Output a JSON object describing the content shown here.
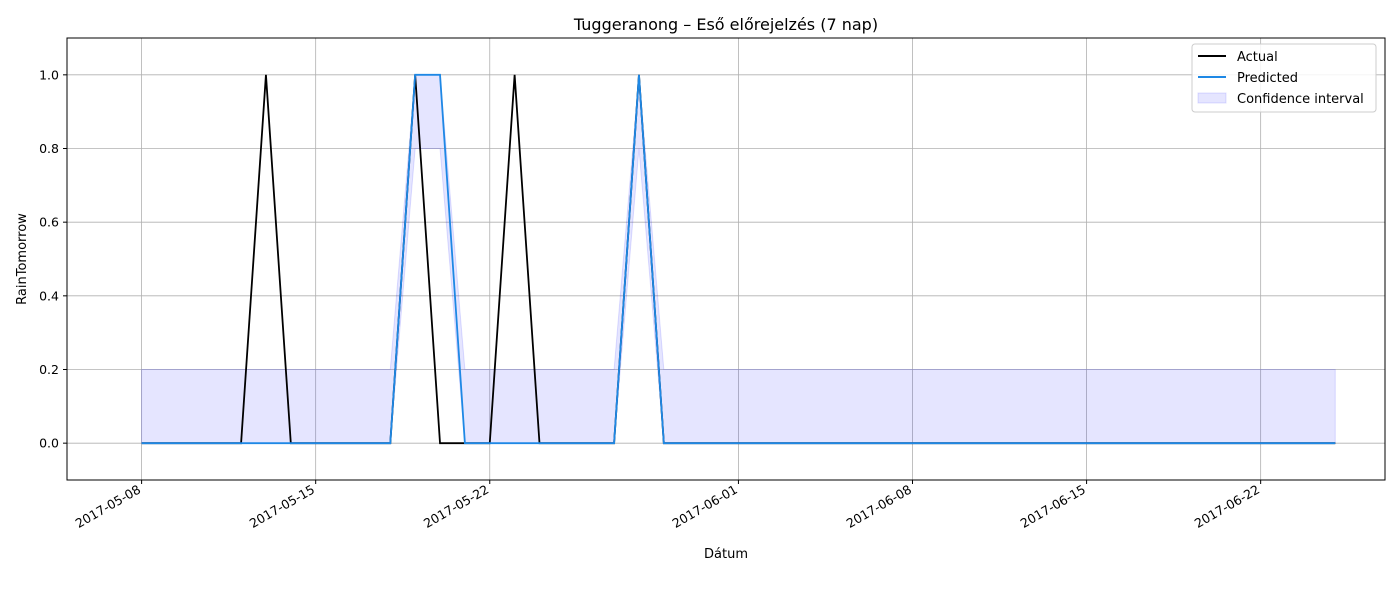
{
  "chart_data": {
    "type": "line",
    "title": "Tuggeranong – Eső előrejelzés (7 nap)",
    "xlabel": "Dátum",
    "ylabel": "RainTomorrow",
    "x_range": [
      "2017-05-05",
      "2017-06-27"
    ],
    "ylim": [
      -0.1,
      1.1
    ],
    "x_ticks": [
      "2017-05-08",
      "2017-05-15",
      "2017-05-22",
      "2017-06-01",
      "2017-06-08",
      "2017-06-15",
      "2017-06-22"
    ],
    "y_ticks": [
      "0.0",
      "0.2",
      "0.4",
      "0.6",
      "0.8",
      "1.0"
    ],
    "grid": true,
    "legend_position": "top-right",
    "dates": [
      "2017-05-08",
      "2017-05-09",
      "2017-05-10",
      "2017-05-11",
      "2017-05-12",
      "2017-05-13",
      "2017-05-14",
      "2017-05-15",
      "2017-05-16",
      "2017-05-17",
      "2017-05-18",
      "2017-05-19",
      "2017-05-20",
      "2017-05-21",
      "2017-05-22",
      "2017-05-23",
      "2017-05-24",
      "2017-05-25",
      "2017-05-26",
      "2017-05-27",
      "2017-05-28",
      "2017-05-29",
      "2017-05-30",
      "2017-05-31",
      "2017-06-01",
      "2017-06-02",
      "2017-06-03",
      "2017-06-04",
      "2017-06-05",
      "2017-06-06",
      "2017-06-07",
      "2017-06-08",
      "2017-06-09",
      "2017-06-10",
      "2017-06-11",
      "2017-06-12",
      "2017-06-13",
      "2017-06-14",
      "2017-06-15",
      "2017-06-16",
      "2017-06-17",
      "2017-06-18",
      "2017-06-19",
      "2017-06-20",
      "2017-06-21",
      "2017-06-22",
      "2017-06-23",
      "2017-06-24",
      "2017-06-25"
    ],
    "series": [
      {
        "name": "Actual",
        "color": "#000000",
        "values": [
          0,
          0,
          0,
          0,
          0,
          1,
          0,
          0,
          0,
          0,
          0,
          1,
          0,
          0,
          0,
          1,
          0,
          0,
          0,
          0,
          1,
          0,
          0,
          0,
          0,
          0,
          0,
          0,
          0,
          0,
          0,
          0,
          0,
          0,
          0,
          0,
          0,
          0,
          0,
          0,
          0,
          0,
          0,
          0,
          0,
          0,
          0,
          0,
          0
        ]
      },
      {
        "name": "Predicted",
        "color": "#1e88e5",
        "values": [
          0,
          0,
          0,
          0,
          0,
          0,
          0,
          0,
          0,
          0,
          0,
          1,
          1,
          0,
          0,
          0,
          0,
          0,
          0,
          0,
          1,
          0,
          0,
          0,
          0,
          0,
          0,
          0,
          0,
          0,
          0,
          0,
          0,
          0,
          0,
          0,
          0,
          0,
          0,
          0,
          0,
          0,
          0,
          0,
          0,
          0,
          0,
          0,
          0
        ]
      }
    ],
    "confidence_interval": {
      "name": "Confidence interval",
      "color": "#0000ff",
      "lower": [
        0,
        0,
        0,
        0,
        0,
        0,
        0,
        0,
        0,
        0,
        0,
        0.8,
        0.8,
        0,
        0,
        0,
        0,
        0,
        0,
        0,
        0.8,
        0,
        0,
        0,
        0,
        0,
        0,
        0,
        0,
        0,
        0,
        0,
        0,
        0,
        0,
        0,
        0,
        0,
        0,
        0,
        0,
        0,
        0,
        0,
        0,
        0,
        0,
        0,
        0
      ],
      "upper": [
        0.2,
        0.2,
        0.2,
        0.2,
        0.2,
        0.2,
        0.2,
        0.2,
        0.2,
        0.2,
        0.2,
        1,
        1,
        0.2,
        0.2,
        0.2,
        0.2,
        0.2,
        0.2,
        0.2,
        1,
        0.2,
        0.2,
        0.2,
        0.2,
        0.2,
        0.2,
        0.2,
        0.2,
        0.2,
        0.2,
        0.2,
        0.2,
        0.2,
        0.2,
        0.2,
        0.2,
        0.2,
        0.2,
        0.2,
        0.2,
        0.2,
        0.2,
        0.2,
        0.2,
        0.2,
        0.2,
        0.2,
        0.2
      ]
    }
  }
}
